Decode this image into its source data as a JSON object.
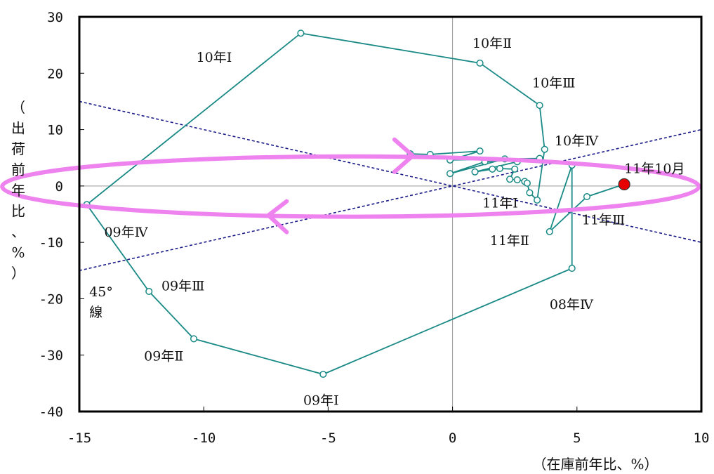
{
  "colors": {
    "series": "#1a8a86",
    "marker_fill": "#ffffff",
    "highlight": "#e60000",
    "ellipse": "#ee82ee",
    "reference": "#1b1b8a",
    "axis": "#000000",
    "zero_line": "#999999"
  },
  "chart_data": {
    "type": "scatter",
    "title": "",
    "xlabel": "（在庫前年比、%）",
    "ylabel": "（出荷前年比、%）",
    "xlim": [
      -15,
      10
    ],
    "ylim": [
      -40,
      30
    ],
    "xticks": [
      -15,
      -10,
      -5,
      0,
      5,
      10
    ],
    "yticks": [
      -40,
      -30,
      -20,
      -10,
      0,
      10,
      20,
      30
    ],
    "grid": false,
    "series": [
      {
        "points": [
          [
            -1.7,
            5.7
          ],
          [
            -0.9,
            5.6
          ],
          [
            1.1,
            6.2
          ],
          [
            -0.1,
            4.6
          ],
          [
            3.5,
            4.9
          ],
          [
            1.3,
            4.3
          ],
          [
            -0.1,
            2.2
          ],
          [
            2.1,
            4.8
          ],
          [
            2.6,
            4.3
          ],
          [
            0.9,
            2.5
          ],
          [
            1.6,
            3.0
          ],
          [
            1.9,
            3.1
          ],
          [
            2.5,
            3.0
          ],
          [
            2.3,
            1.2
          ],
          [
            2.6,
            1.1
          ],
          [
            2.9,
            0.8
          ],
          [
            3.0,
            0.5
          ],
          [
            3.1,
            -1.2
          ],
          [
            3.4,
            -2.5
          ],
          [
            3.7,
            6.5
          ],
          [
            3.5,
            14.3
          ],
          [
            1.1,
            21.8
          ],
          [
            -6.1,
            27.1
          ],
          [
            -14.7,
            -3.3
          ],
          [
            -12.2,
            -18.7
          ],
          [
            -10.4,
            -27.1
          ],
          [
            -5.2,
            -33.4
          ],
          [
            4.8,
            -14.6
          ],
          [
            4.8,
            3.7
          ],
          [
            3.9,
            -8.1
          ],
          [
            5.4,
            -1.9
          ],
          [
            6.9,
            0.3
          ]
        ],
        "highlight_last": true
      }
    ],
    "annotations": [
      {
        "text": "10年Ⅰ",
        "x": -10.3,
        "y": 22.0
      },
      {
        "text": "10年Ⅱ",
        "x": 0.8,
        "y": 24.5
      },
      {
        "text": "10年Ⅲ",
        "x": 3.2,
        "y": 17.5
      },
      {
        "text": "10年Ⅳ",
        "x": 4.1,
        "y": 7.2
      },
      {
        "text": "11年10月",
        "x": 6.9,
        "y": 2.3
      },
      {
        "text": "11年Ⅰ",
        "x": 1.2,
        "y": -3.8
      },
      {
        "text": "11年Ⅲ",
        "x": 5.2,
        "y": -6.8
      },
      {
        "text": "11年Ⅱ",
        "x": 1.5,
        "y": -10.5
      },
      {
        "text": "09年Ⅳ",
        "x": -14.0,
        "y": -9.0
      },
      {
        "text": "09年Ⅲ",
        "x": -11.7,
        "y": -18.5
      },
      {
        "text": "09年Ⅱ",
        "x": -12.4,
        "y": -31.0
      },
      {
        "text": "09年Ⅰ",
        "x": -6.0,
        "y": -38.8
      },
      {
        "text": "08年Ⅳ",
        "x": 3.9,
        "y": -21.8
      },
      {
        "text": "45°",
        "x": -14.6,
        "y": -19.6
      },
      {
        "text": "線",
        "x": -14.6,
        "y": -23.2
      }
    ],
    "reference_lines": [
      {
        "from": [
          -15,
          -15
        ],
        "to": [
          10,
          10
        ],
        "style": "dashed"
      },
      {
        "from": [
          -15,
          15
        ],
        "to": [
          10,
          -10
        ],
        "style": "dashed"
      }
    ],
    "overlay_cycle": {
      "center": [
        -4.1,
        -0.1
      ],
      "rx": 14.0,
      "ry": 12.3,
      "direction": "clockwise"
    }
  }
}
